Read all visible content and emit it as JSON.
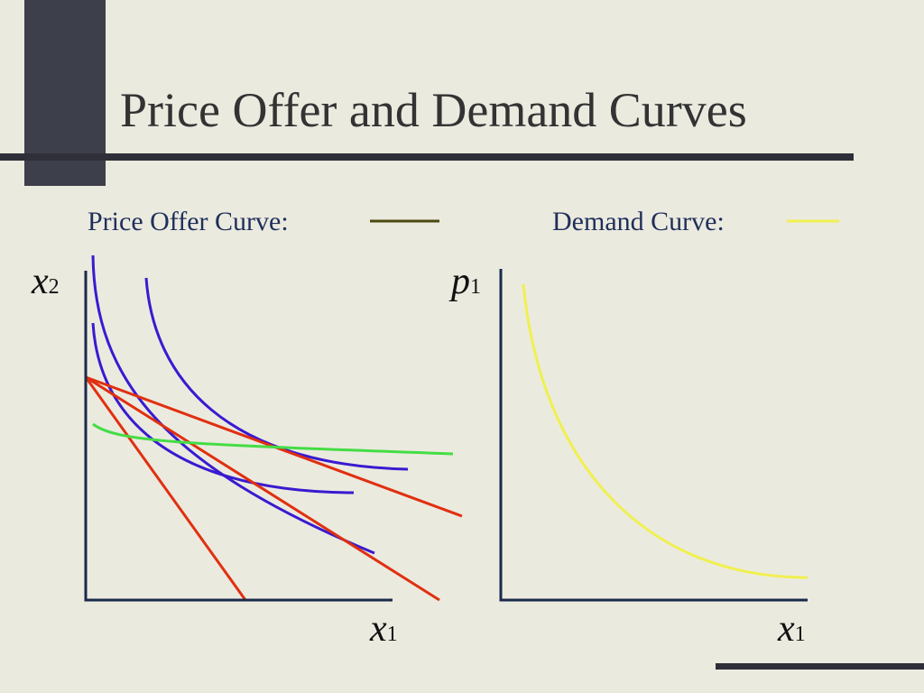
{
  "header": {
    "title": "Price Offer and Demand Curves"
  },
  "legend": [
    {
      "label": "Price Offer Curve:"
    },
    {
      "label": "Demand Curve:"
    }
  ],
  "left_panel": {
    "y_label": {
      "text": "x",
      "sub": "2"
    },
    "x_label": {
      "text": "x",
      "sub": "1"
    }
  },
  "right_panel": {
    "y_label": {
      "text": "p",
      "sub": "1"
    },
    "x_label": {
      "text": "x",
      "sub": "1"
    }
  }
}
